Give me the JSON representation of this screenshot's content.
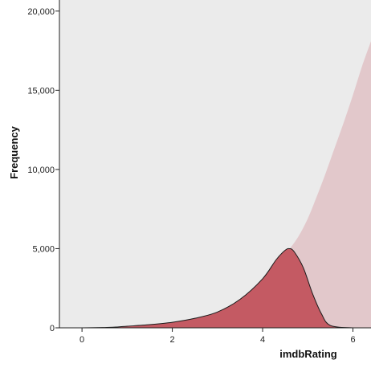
{
  "chart_data": {
    "type": "area",
    "title": "",
    "xlabel": "imdbRating",
    "ylabel": "Frequency",
    "xlim": [
      -0.5,
      6.4
    ],
    "ylim": [
      0,
      20700
    ],
    "grid": false,
    "x_ticks": [
      0,
      2,
      4,
      6
    ],
    "x_tick_labels": [
      "0",
      "2",
      "4",
      "6"
    ],
    "y_ticks": [
      0,
      5000,
      10000,
      15000,
      20000
    ],
    "y_tick_labels": [
      "0",
      "5,000",
      "10,000",
      "15,000",
      "20,000"
    ],
    "colors": {
      "background": "#ebebeb",
      "focus_fill": "#c45a63",
      "focus_stroke": "#1a1a1a",
      "context_fill": "#e2c8cb"
    },
    "series": [
      {
        "role": "context",
        "x": [
          -0.5,
          0.5,
          1.0,
          1.5,
          2.0,
          2.5,
          3.0,
          3.5,
          4.0,
          4.3,
          4.6,
          4.8,
          5.0,
          5.2,
          5.4,
          5.6,
          5.8,
          6.0,
          6.2,
          6.4
        ],
        "values": [
          0,
          30,
          100,
          200,
          350,
          600,
          1000,
          1800,
          3000,
          4000,
          5000,
          5800,
          6900,
          8300,
          9800,
          11400,
          13000,
          14700,
          16500,
          18100
        ]
      },
      {
        "role": "focus",
        "x": [
          -0.5,
          0.0,
          0.5,
          0.8,
          1.0,
          1.5,
          2.0,
          2.5,
          3.0,
          3.5,
          4.0,
          4.3,
          4.5,
          4.6,
          4.7,
          4.9,
          5.1,
          5.3,
          5.5,
          6.0,
          6.4
        ],
        "values": [
          0,
          0,
          20,
          60,
          100,
          200,
          350,
          600,
          1000,
          1800,
          3100,
          4300,
          4900,
          5000,
          4800,
          3800,
          2200,
          900,
          150,
          0,
          0
        ]
      }
    ]
  }
}
